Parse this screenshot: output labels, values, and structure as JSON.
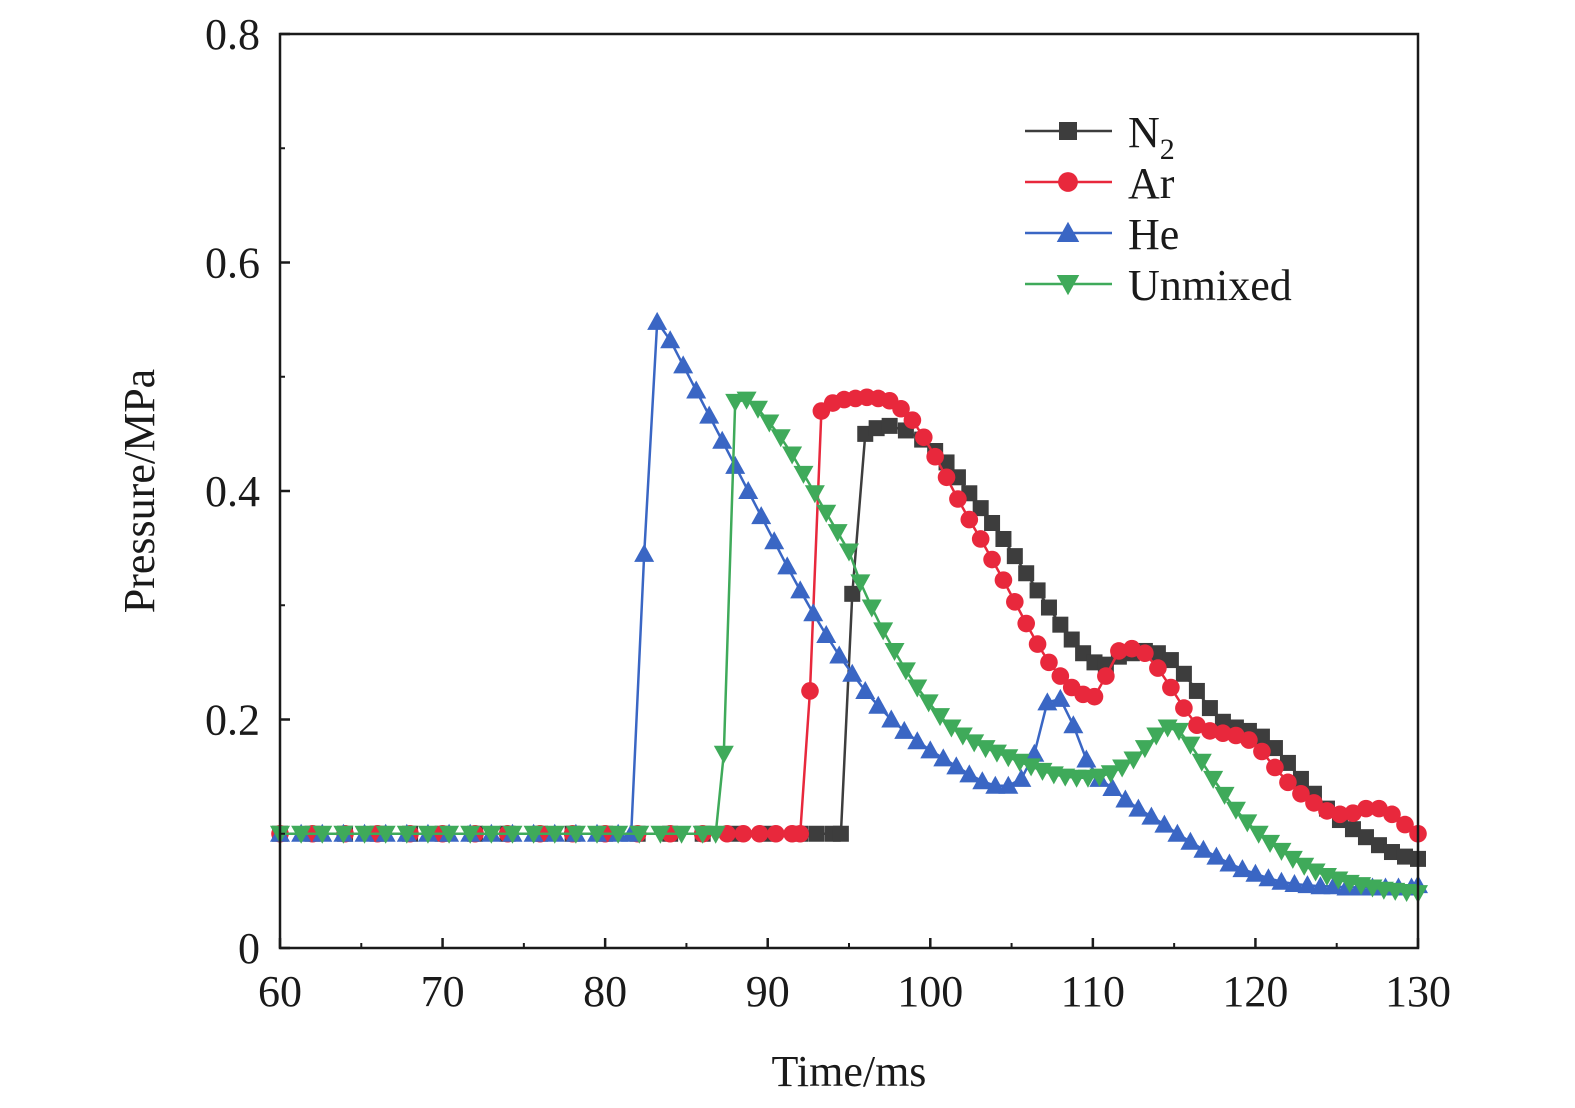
{
  "chart_data": {
    "type": "line",
    "xlabel": "Time/ms",
    "ylabel": "Pressure/MPa",
    "xlim": [
      60,
      130
    ],
    "ylim": [
      0,
      0.8
    ],
    "x_ticks": [
      "60",
      "70",
      "80",
      "90",
      "100",
      "110",
      "120",
      "130"
    ],
    "y_ticks": [
      "0",
      "0.2",
      "0.4",
      "0.6",
      "0.8"
    ],
    "grid": false,
    "legend_position": "top-right",
    "series": [
      {
        "name": "N",
        "name_subscript": "2",
        "color": "#3d3d3d",
        "marker": "square",
        "points": [
          [
            60,
            0.1
          ],
          [
            62,
            0.1
          ],
          [
            64,
            0.1
          ],
          [
            66,
            0.1
          ],
          [
            68,
            0.1
          ],
          [
            70,
            0.1
          ],
          [
            72,
            0.1
          ],
          [
            74,
            0.1
          ],
          [
            76,
            0.1
          ],
          [
            78,
            0.1
          ],
          [
            80,
            0.1
          ],
          [
            82,
            0.1
          ],
          [
            84,
            0.1
          ],
          [
            86,
            0.1
          ],
          [
            88,
            0.1
          ],
          [
            90,
            0.1
          ],
          [
            92,
            0.1
          ],
          [
            93,
            0.1
          ],
          [
            94,
            0.1
          ],
          [
            94.5,
            0.1
          ],
          [
            95.2,
            0.31
          ],
          [
            96,
            0.45
          ],
          [
            96.7,
            0.455
          ],
          [
            97.5,
            0.457
          ],
          [
            98.5,
            0.453
          ],
          [
            99.5,
            0.445
          ],
          [
            100.3,
            0.435
          ],
          [
            101,
            0.425
          ],
          [
            101.7,
            0.412
          ],
          [
            102.4,
            0.398
          ],
          [
            103.1,
            0.385
          ],
          [
            103.8,
            0.372
          ],
          [
            104.5,
            0.358
          ],
          [
            105.2,
            0.343
          ],
          [
            105.9,
            0.328
          ],
          [
            106.6,
            0.313
          ],
          [
            107.3,
            0.298
          ],
          [
            108,
            0.283
          ],
          [
            108.7,
            0.27
          ],
          [
            109.4,
            0.258
          ],
          [
            110.1,
            0.25
          ],
          [
            110.8,
            0.248
          ],
          [
            111.6,
            0.255
          ],
          [
            112.4,
            0.258
          ],
          [
            113.2,
            0.26
          ],
          [
            114,
            0.258
          ],
          [
            114.8,
            0.252
          ],
          [
            115.6,
            0.24
          ],
          [
            116.4,
            0.225
          ],
          [
            117.2,
            0.21
          ],
          [
            118,
            0.198
          ],
          [
            118.8,
            0.193
          ],
          [
            119.6,
            0.19
          ],
          [
            120.4,
            0.185
          ],
          [
            121.2,
            0.175
          ],
          [
            122,
            0.162
          ],
          [
            122.8,
            0.148
          ],
          [
            123.6,
            0.135
          ],
          [
            124.4,
            0.122
          ],
          [
            125.2,
            0.112
          ],
          [
            126,
            0.104
          ],
          [
            126.8,
            0.097
          ],
          [
            127.6,
            0.09
          ],
          [
            128.4,
            0.084
          ],
          [
            129.2,
            0.08
          ],
          [
            130,
            0.078
          ]
        ]
      },
      {
        "name": "Ar",
        "color": "#e8283c",
        "marker": "circle",
        "points": [
          [
            60,
            0.1
          ],
          [
            62,
            0.1
          ],
          [
            64,
            0.1
          ],
          [
            66,
            0.1
          ],
          [
            68,
            0.1
          ],
          [
            70,
            0.1
          ],
          [
            72,
            0.1
          ],
          [
            74,
            0.1
          ],
          [
            76,
            0.1
          ],
          [
            78,
            0.1
          ],
          [
            80,
            0.1
          ],
          [
            82,
            0.1
          ],
          [
            84,
            0.1
          ],
          [
            86,
            0.1
          ],
          [
            87.5,
            0.1
          ],
          [
            88.5,
            0.1
          ],
          [
            89.5,
            0.1
          ],
          [
            90.5,
            0.1
          ],
          [
            91.5,
            0.1
          ],
          [
            92,
            0.1
          ],
          [
            92.6,
            0.225
          ],
          [
            93.3,
            0.47
          ],
          [
            94,
            0.477
          ],
          [
            94.7,
            0.48
          ],
          [
            95.4,
            0.481
          ],
          [
            96.1,
            0.482
          ],
          [
            96.8,
            0.481
          ],
          [
            97.5,
            0.479
          ],
          [
            98.2,
            0.472
          ],
          [
            98.9,
            0.462
          ],
          [
            99.6,
            0.447
          ],
          [
            100.3,
            0.43
          ],
          [
            101,
            0.412
          ],
          [
            101.7,
            0.393
          ],
          [
            102.4,
            0.375
          ],
          [
            103.1,
            0.358
          ],
          [
            103.8,
            0.34
          ],
          [
            104.5,
            0.322
          ],
          [
            105.2,
            0.303
          ],
          [
            105.9,
            0.284
          ],
          [
            106.6,
            0.266
          ],
          [
            107.3,
            0.25
          ],
          [
            108,
            0.238
          ],
          [
            108.7,
            0.228
          ],
          [
            109.4,
            0.222
          ],
          [
            110.1,
            0.22
          ],
          [
            110.8,
            0.238
          ],
          [
            111.6,
            0.26
          ],
          [
            112.4,
            0.262
          ],
          [
            113.2,
            0.258
          ],
          [
            114,
            0.245
          ],
          [
            114.8,
            0.228
          ],
          [
            115.6,
            0.21
          ],
          [
            116.4,
            0.195
          ],
          [
            117.2,
            0.19
          ],
          [
            118,
            0.188
          ],
          [
            118.8,
            0.186
          ],
          [
            119.6,
            0.182
          ],
          [
            120.4,
            0.172
          ],
          [
            121.2,
            0.158
          ],
          [
            122,
            0.145
          ],
          [
            122.8,
            0.135
          ],
          [
            123.6,
            0.127
          ],
          [
            124.4,
            0.12
          ],
          [
            125.2,
            0.117
          ],
          [
            126,
            0.118
          ],
          [
            126.8,
            0.122
          ],
          [
            127.6,
            0.122
          ],
          [
            128.4,
            0.117
          ],
          [
            129.2,
            0.108
          ],
          [
            130,
            0.1
          ]
        ]
      },
      {
        "name": "He",
        "color": "#3a66c4",
        "marker": "triangle-up",
        "points": [
          [
            60,
            0.1
          ],
          [
            61.3,
            0.1
          ],
          [
            62.6,
            0.1
          ],
          [
            63.9,
            0.1
          ],
          [
            65.2,
            0.1
          ],
          [
            66.5,
            0.1
          ],
          [
            67.8,
            0.1
          ],
          [
            69.1,
            0.1
          ],
          [
            70.4,
            0.1
          ],
          [
            71.7,
            0.1
          ],
          [
            73,
            0.1
          ],
          [
            74.3,
            0.1
          ],
          [
            75.6,
            0.1
          ],
          [
            76.9,
            0.1
          ],
          [
            78.2,
            0.1
          ],
          [
            79.5,
            0.1
          ],
          [
            80.8,
            0.1
          ],
          [
            81.6,
            0.1
          ],
          [
            82.4,
            0.345
          ],
          [
            83.2,
            0.548
          ],
          [
            84,
            0.532
          ],
          [
            84.8,
            0.51
          ],
          [
            85.6,
            0.488
          ],
          [
            86.4,
            0.466
          ],
          [
            87.2,
            0.444
          ],
          [
            88,
            0.422
          ],
          [
            88.8,
            0.4
          ],
          [
            89.6,
            0.378
          ],
          [
            90.4,
            0.356
          ],
          [
            91.2,
            0.334
          ],
          [
            92,
            0.313
          ],
          [
            92.8,
            0.293
          ],
          [
            93.6,
            0.274
          ],
          [
            94.4,
            0.256
          ],
          [
            95.2,
            0.24
          ],
          [
            96,
            0.225
          ],
          [
            96.8,
            0.212
          ],
          [
            97.6,
            0.2
          ],
          [
            98.4,
            0.19
          ],
          [
            99.2,
            0.181
          ],
          [
            100,
            0.173
          ],
          [
            100.8,
            0.166
          ],
          [
            101.6,
            0.159
          ],
          [
            102.4,
            0.152
          ],
          [
            103.2,
            0.146
          ],
          [
            104,
            0.142
          ],
          [
            104.8,
            0.142
          ],
          [
            105.6,
            0.148
          ],
          [
            106.4,
            0.17
          ],
          [
            107.2,
            0.215
          ],
          [
            108,
            0.218
          ],
          [
            108.8,
            0.195
          ],
          [
            109.6,
            0.165
          ],
          [
            110.4,
            0.148
          ],
          [
            111.2,
            0.14
          ],
          [
            112,
            0.13
          ],
          [
            112.8,
            0.122
          ],
          [
            113.6,
            0.115
          ],
          [
            114.4,
            0.108
          ],
          [
            115.2,
            0.1
          ],
          [
            116,
            0.093
          ],
          [
            116.8,
            0.086
          ],
          [
            117.6,
            0.08
          ],
          [
            118.4,
            0.074
          ],
          [
            119.2,
            0.069
          ],
          [
            120,
            0.065
          ],
          [
            120.8,
            0.061
          ],
          [
            121.6,
            0.058
          ],
          [
            122.4,
            0.056
          ],
          [
            123.2,
            0.055
          ],
          [
            124,
            0.054
          ],
          [
            124.8,
            0.054
          ],
          [
            125.6,
            0.053
          ],
          [
            126.4,
            0.053
          ],
          [
            127.2,
            0.053
          ],
          [
            128,
            0.053
          ],
          [
            128.8,
            0.053
          ],
          [
            129.6,
            0.053
          ],
          [
            130,
            0.055
          ]
        ]
      },
      {
        "name": "Unmixed",
        "color": "#3faa5a",
        "marker": "triangle-down",
        "points": [
          [
            60,
            0.1
          ],
          [
            61.3,
            0.1
          ],
          [
            62.6,
            0.1
          ],
          [
            63.9,
            0.1
          ],
          [
            65.2,
            0.1
          ],
          [
            66.5,
            0.1
          ],
          [
            67.8,
            0.1
          ],
          [
            69.1,
            0.1
          ],
          [
            70.4,
            0.1
          ],
          [
            71.7,
            0.1
          ],
          [
            73,
            0.1
          ],
          [
            74.3,
            0.1
          ],
          [
            75.6,
            0.1
          ],
          [
            76.9,
            0.1
          ],
          [
            78.2,
            0.1
          ],
          [
            79.5,
            0.1
          ],
          [
            80.8,
            0.1
          ],
          [
            82.1,
            0.1
          ],
          [
            83.4,
            0.1
          ],
          [
            84.7,
            0.1
          ],
          [
            86,
            0.1
          ],
          [
            86.8,
            0.1
          ],
          [
            87.3,
            0.17
          ],
          [
            88,
            0.478
          ],
          [
            88.7,
            0.48
          ],
          [
            89.4,
            0.472
          ],
          [
            90.1,
            0.46
          ],
          [
            90.8,
            0.447
          ],
          [
            91.5,
            0.432
          ],
          [
            92.2,
            0.415
          ],
          [
            92.9,
            0.398
          ],
          [
            93.6,
            0.381
          ],
          [
            94.3,
            0.364
          ],
          [
            95,
            0.347
          ],
          [
            95.7,
            0.32
          ],
          [
            96.4,
            0.298
          ],
          [
            97.1,
            0.278
          ],
          [
            97.8,
            0.26
          ],
          [
            98.5,
            0.243
          ],
          [
            99.2,
            0.228
          ],
          [
            99.9,
            0.215
          ],
          [
            100.6,
            0.203
          ],
          [
            101.3,
            0.193
          ],
          [
            102,
            0.186
          ],
          [
            102.7,
            0.18
          ],
          [
            103.4,
            0.175
          ],
          [
            104.1,
            0.171
          ],
          [
            104.8,
            0.167
          ],
          [
            105.5,
            0.163
          ],
          [
            106.2,
            0.159
          ],
          [
            106.9,
            0.155
          ],
          [
            107.6,
            0.152
          ],
          [
            108.3,
            0.15
          ],
          [
            109,
            0.149
          ],
          [
            109.7,
            0.149
          ],
          [
            110.4,
            0.15
          ],
          [
            111.1,
            0.153
          ],
          [
            111.8,
            0.158
          ],
          [
            112.5,
            0.165
          ],
          [
            113.2,
            0.175
          ],
          [
            113.9,
            0.186
          ],
          [
            114.6,
            0.193
          ],
          [
            115.3,
            0.19
          ],
          [
            116,
            0.178
          ],
          [
            116.7,
            0.163
          ],
          [
            117.4,
            0.148
          ],
          [
            118.1,
            0.134
          ],
          [
            118.8,
            0.121
          ],
          [
            119.5,
            0.11
          ],
          [
            120.2,
            0.1
          ],
          [
            120.9,
            0.092
          ],
          [
            121.6,
            0.085
          ],
          [
            122.3,
            0.078
          ],
          [
            123,
            0.072
          ],
          [
            123.7,
            0.067
          ],
          [
            124.4,
            0.063
          ],
          [
            125.1,
            0.06
          ],
          [
            125.8,
            0.057
          ],
          [
            126.5,
            0.055
          ],
          [
            127.2,
            0.053
          ],
          [
            127.9,
            0.051
          ],
          [
            128.6,
            0.05
          ],
          [
            129.3,
            0.049
          ],
          [
            130,
            0.048
          ]
        ]
      }
    ]
  }
}
